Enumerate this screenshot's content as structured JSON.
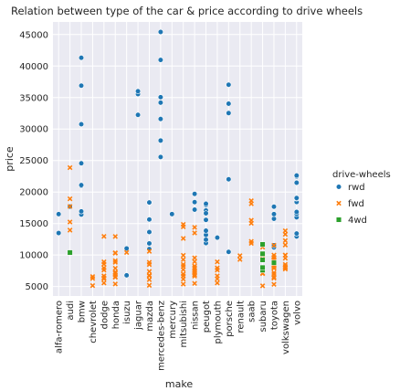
{
  "chart_data": {
    "type": "scatter",
    "title": "Relation between type of the car & price according to drive wheels",
    "xlabel": "make",
    "ylabel": "price",
    "ylim": [
      3500,
      47000
    ],
    "yticks": [
      5000,
      10000,
      15000,
      20000,
      25000,
      30000,
      35000,
      40000,
      45000
    ],
    "grid": true,
    "legend_position": "right",
    "legend_title": "drive-wheels",
    "categories": [
      "alfa-romero",
      "audi",
      "bmw",
      "chevrolet",
      "dodge",
      "honda",
      "isuzu",
      "jaguar",
      "mazda",
      "mercedes-benz",
      "mercury",
      "mitsubishi",
      "nissan",
      "peugot",
      "plymouth",
      "porsche",
      "renault",
      "saab",
      "subaru",
      "toyota",
      "volkswagen",
      "volvo"
    ],
    "series": [
      {
        "name": "rwd",
        "color": "#1f77b4",
        "marker": "circle",
        "points": [
          [
            "alfa-romero",
            13495
          ],
          [
            "alfa-romero",
            16500
          ],
          [
            "audi",
            17700
          ],
          [
            "bmw",
            16430
          ],
          [
            "bmw",
            16925
          ],
          [
            "bmw",
            20970
          ],
          [
            "bmw",
            21105
          ],
          [
            "bmw",
            24565
          ],
          [
            "bmw",
            30760
          ],
          [
            "bmw",
            36880
          ],
          [
            "bmw",
            41315
          ],
          [
            "isuzu",
            6785
          ],
          [
            "isuzu",
            11048
          ],
          [
            "jaguar",
            32250
          ],
          [
            "jaguar",
            35550
          ],
          [
            "jaguar",
            36000
          ],
          [
            "mazda",
            10945
          ],
          [
            "mazda",
            11845
          ],
          [
            "mazda",
            13645
          ],
          [
            "mazda",
            15645
          ],
          [
            "mazda",
            18280
          ],
          [
            "mazda",
            18344
          ],
          [
            "mercedes-benz",
            25552
          ],
          [
            "mercedes-benz",
            28248
          ],
          [
            "mercedes-benz",
            28176
          ],
          [
            "mercedes-benz",
            31600
          ],
          [
            "mercedes-benz",
            34184
          ],
          [
            "mercedes-benz",
            35056
          ],
          [
            "mercedes-benz",
            40960
          ],
          [
            "mercedes-benz",
            45400
          ],
          [
            "mercury",
            16503
          ],
          [
            "nissan",
            17199
          ],
          [
            "nissan",
            18399
          ],
          [
            "nissan",
            19699
          ],
          [
            "peugot",
            11900
          ],
          [
            "peugot",
            12440
          ],
          [
            "peugot",
            13200
          ],
          [
            "peugot",
            13860
          ],
          [
            "peugot",
            15580
          ],
          [
            "peugot",
            16900
          ],
          [
            "peugot",
            16695
          ],
          [
            "peugot",
            17075
          ],
          [
            "peugot",
            16630
          ],
          [
            "peugot",
            17950
          ],
          [
            "peugot",
            18150
          ],
          [
            "plymouth",
            12764
          ],
          [
            "porsche",
            10500
          ],
          [
            "porsche",
            22018
          ],
          [
            "porsche",
            32528
          ],
          [
            "porsche",
            34028
          ],
          [
            "porsche",
            37028
          ],
          [
            "toyota",
            11199
          ],
          [
            "toyota",
            11549
          ],
          [
            "toyota",
            15750
          ],
          [
            "toyota",
            16500
          ],
          [
            "toyota",
            17669
          ],
          [
            "volvo",
            12940
          ],
          [
            "volvo",
            13415
          ],
          [
            "volvo",
            15985
          ],
          [
            "volvo",
            16515
          ],
          [
            "volvo",
            18420
          ],
          [
            "volvo",
            18950
          ],
          [
            "volvo",
            16845
          ],
          [
            "volvo",
            19045
          ],
          [
            "volvo",
            21485
          ],
          [
            "volvo",
            22470
          ],
          [
            "volvo",
            22625
          ]
        ]
      },
      {
        "name": "fwd",
        "color": "#ff7f0e",
        "marker": "x",
        "points": [
          [
            "audi",
            13950
          ],
          [
            "audi",
            15250
          ],
          [
            "audi",
            17710
          ],
          [
            "audi",
            18920
          ],
          [
            "audi",
            23875
          ],
          [
            "chevrolet",
            5151
          ],
          [
            "chevrolet",
            6295
          ],
          [
            "chevrolet",
            6575
          ],
          [
            "dodge",
            5572
          ],
          [
            "dodge",
            6377
          ],
          [
            "dodge",
            7957
          ],
          [
            "dodge",
            6229
          ],
          [
            "dodge",
            6692
          ],
          [
            "dodge",
            7609
          ],
          [
            "dodge",
            8558
          ],
          [
            "dodge",
            8921
          ],
          [
            "dodge",
            12964
          ],
          [
            "honda",
            6479
          ],
          [
            "honda",
            6855
          ],
          [
            "honda",
            5399
          ],
          [
            "honda",
            6529
          ],
          [
            "honda",
            7129
          ],
          [
            "honda",
            7295
          ],
          [
            "honda",
            7895
          ],
          [
            "honda",
            9095
          ],
          [
            "honda",
            8845
          ],
          [
            "honda",
            10295
          ],
          [
            "honda",
            12945
          ],
          [
            "honda",
            10345
          ],
          [
            "isuzu",
            10400
          ],
          [
            "mazda",
            5195
          ],
          [
            "mazda",
            6095
          ],
          [
            "mazda",
            6795
          ],
          [
            "mazda",
            6695
          ],
          [
            "mazda",
            7395
          ],
          [
            "mazda",
            8845
          ],
          [
            "mazda",
            8495
          ],
          [
            "mazda",
            10595
          ],
          [
            "mitsubishi",
            5389
          ],
          [
            "mitsubishi",
            6189
          ],
          [
            "mitsubishi",
            6669
          ],
          [
            "mitsubishi",
            7689
          ],
          [
            "mitsubishi",
            9959
          ],
          [
            "mitsubishi",
            8499
          ],
          [
            "mitsubishi",
            12629
          ],
          [
            "mitsubishi",
            14869
          ],
          [
            "mitsubishi",
            14489
          ],
          [
            "mitsubishi",
            6989
          ],
          [
            "mitsubishi",
            8189
          ],
          [
            "mitsubishi",
            9279
          ],
          [
            "nissan",
            5499
          ],
          [
            "nissan",
            7099
          ],
          [
            "nissan",
            6649
          ],
          [
            "nissan",
            6849
          ],
          [
            "nissan",
            7349
          ],
          [
            "nissan",
            7299
          ],
          [
            "nissan",
            7799
          ],
          [
            "nissan",
            7499
          ],
          [
            "nissan",
            7999
          ],
          [
            "nissan",
            8249
          ],
          [
            "nissan",
            8949
          ],
          [
            "nissan",
            9549
          ],
          [
            "nissan",
            13499
          ],
          [
            "nissan",
            14399
          ],
          [
            "plymouth",
            5572
          ],
          [
            "plymouth",
            7957
          ],
          [
            "plymouth",
            6229
          ],
          [
            "plymouth",
            6692
          ],
          [
            "plymouth",
            7609
          ],
          [
            "plymouth",
            8921
          ],
          [
            "renault",
            9295
          ],
          [
            "renault",
            9895
          ],
          [
            "saab",
            11850
          ],
          [
            "saab",
            12170
          ],
          [
            "saab",
            15040
          ],
          [
            "saab",
            15510
          ],
          [
            "saab",
            18150
          ],
          [
            "saab",
            18620
          ],
          [
            "subaru",
            5118
          ],
          [
            "subaru",
            7053
          ],
          [
            "subaru",
            7603
          ],
          [
            "subaru",
            7126
          ],
          [
            "subaru",
            7775
          ],
          [
            "subaru",
            9960
          ],
          [
            "subaru",
            9233
          ],
          [
            "subaru",
            11259
          ],
          [
            "toyota",
            5348
          ],
          [
            "toyota",
            6338
          ],
          [
            "toyota",
            6488
          ],
          [
            "toyota",
            6918
          ],
          [
            "toyota",
            7198
          ],
          [
            "toyota",
            7898
          ],
          [
            "toyota",
            8358
          ],
          [
            "toyota",
            9258
          ],
          [
            "toyota",
            8058
          ],
          [
            "toyota",
            8238
          ],
          [
            "toyota",
            9298
          ],
          [
            "toyota",
            9538
          ],
          [
            "toyota",
            8449
          ],
          [
            "toyota",
            9639
          ],
          [
            "toyota",
            9989
          ],
          [
            "toyota",
            11549
          ],
          [
            "volkswagen",
            7775
          ],
          [
            "volkswagen",
            7975
          ],
          [
            "volkswagen",
            7995
          ],
          [
            "volkswagen",
            8195
          ],
          [
            "volkswagen",
            8495
          ],
          [
            "volkswagen",
            9495
          ],
          [
            "volkswagen",
            9995
          ],
          [
            "volkswagen",
            11595
          ],
          [
            "volkswagen",
            12290
          ],
          [
            "volkswagen",
            13845
          ],
          [
            "volkswagen",
            13295
          ],
          [
            "volkswagen",
            9980
          ]
        ]
      },
      {
        "name": "4wd",
        "color": "#2ca02c",
        "marker": "square",
        "points": [
          [
            "audi",
            10400
          ],
          [
            "subaru",
            7603
          ],
          [
            "subaru",
            8013
          ],
          [
            "subaru",
            9233
          ],
          [
            "subaru",
            10198
          ],
          [
            "subaru",
            11694
          ],
          [
            "toyota",
            8778
          ]
        ]
      }
    ]
  }
}
